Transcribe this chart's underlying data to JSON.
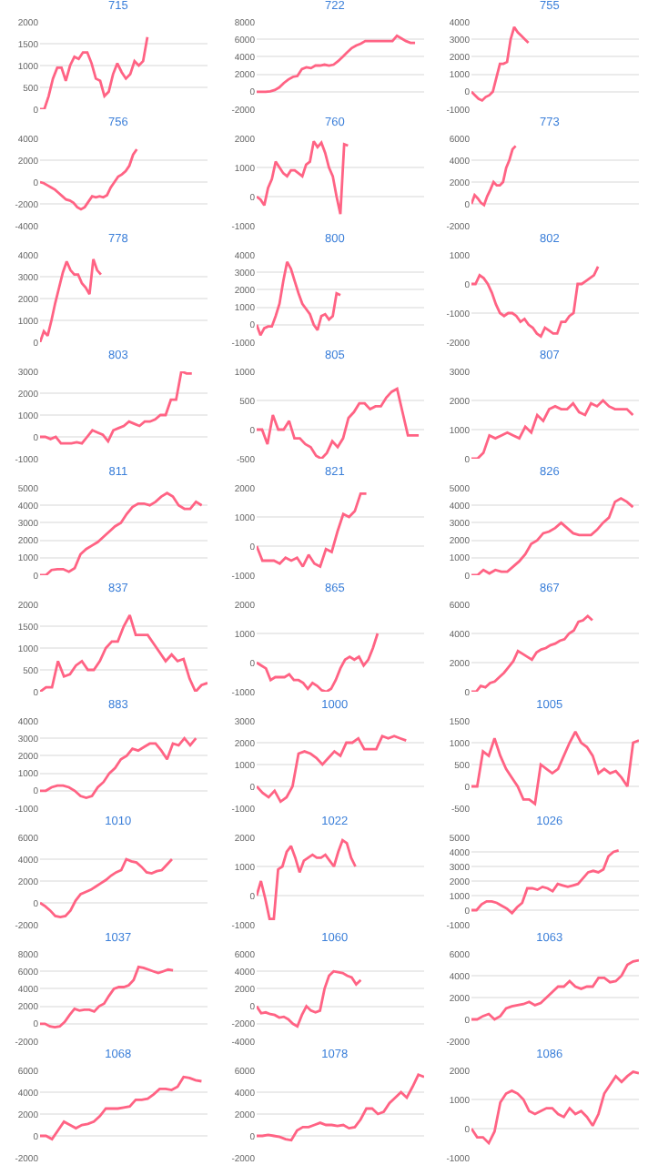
{
  "chart_data": [
    {
      "type": "line",
      "title": "715",
      "color": "#ff6384",
      "grid": "y",
      "tick_labels": "y",
      "ylim": [
        0,
        2000
      ],
      "yticks": [
        0,
        500,
        1000,
        1500,
        2000
      ],
      "categories": [
        null,
        null,
        null,
        null,
        null,
        null,
        null,
        null,
        null,
        null,
        null,
        null,
        null,
        null,
        null,
        null,
        null,
        null,
        null,
        null,
        null,
        null,
        null,
        null,
        null,
        null,
        null,
        null,
        null,
        null,
        null,
        null,
        null,
        null,
        null,
        null,
        null,
        null,
        null,
        null
      ],
      "values": [
        0,
        0,
        300,
        700,
        950,
        950,
        650,
        1000,
        1200,
        1150,
        1300,
        1300,
        1050,
        700,
        650,
        300,
        400,
        800,
        1050,
        850,
        700,
        800,
        1100,
        1000,
        1100,
        1650,
        null,
        null,
        null,
        null,
        null,
        null,
        null,
        null,
        null,
        null,
        null,
        null,
        null,
        null
      ]
    },
    {
      "type": "line",
      "title": "722",
      "color": "#ff6384",
      "grid": "y",
      "tick_labels": "y",
      "ylim": [
        -2000,
        8000
      ],
      "yticks": [
        -2000,
        0,
        2000,
        4000,
        6000,
        8000
      ],
      "categories": [
        null,
        null,
        null,
        null,
        null,
        null,
        null,
        null,
        null,
        null,
        null,
        null,
        null,
        null,
        null,
        null,
        null,
        null,
        null,
        null,
        null,
        null,
        null,
        null,
        null,
        null,
        null,
        null,
        null,
        null,
        null,
        null,
        null,
        null,
        null,
        null,
        null,
        null
      ],
      "values": [
        0,
        0,
        0,
        50,
        200,
        500,
        1000,
        1400,
        1700,
        1800,
        2600,
        2800,
        2700,
        3000,
        3000,
        3100,
        3000,
        3100,
        3500,
        4000,
        4500,
        5000,
        5300,
        5500,
        5800,
        5800,
        5800,
        5800,
        5800,
        5800,
        5800,
        6400,
        6100,
        5800,
        5600,
        5600,
        null,
        null
      ]
    },
    {
      "type": "line",
      "title": "755",
      "color": "#ff6384",
      "grid": "y",
      "tick_labels": "y",
      "ylim": [
        -1000,
        4000
      ],
      "yticks": [
        -1000,
        0,
        1000,
        2000,
        3000,
        4000
      ],
      "categories": [
        null,
        null,
        null,
        null,
        null,
        null,
        null,
        null,
        null,
        null,
        null,
        null,
        null,
        null,
        null,
        null,
        null,
        null,
        null,
        null,
        null,
        null,
        null,
        null,
        null,
        null,
        null,
        null,
        null,
        null,
        null,
        null,
        null,
        null,
        null,
        null,
        null,
        null,
        null,
        null,
        null,
        null,
        null,
        null,
        null,
        null,
        null,
        null
      ],
      "values": [
        0,
        -200,
        -400,
        -500,
        -300,
        -200,
        0,
        800,
        1600,
        1600,
        1700,
        3000,
        3700,
        3400,
        3200,
        3000,
        2800,
        null,
        null,
        null,
        null,
        null,
        null,
        null,
        null,
        null,
        null,
        null,
        null,
        null,
        null,
        null,
        null,
        null,
        null,
        null,
        null,
        null,
        null,
        null,
        null,
        null,
        null,
        null,
        null,
        null,
        null,
        null
      ]
    },
    {
      "type": "line",
      "title": "756",
      "color": "#ff6384",
      "grid": "y",
      "tick_labels": "y",
      "ylim": [
        -4000,
        4000
      ],
      "yticks": [
        -4000,
        -2000,
        0,
        2000,
        4000
      ],
      "categories": [
        null,
        null,
        null,
        null,
        null,
        null,
        null,
        null,
        null,
        null,
        null,
        null,
        null,
        null,
        null,
        null,
        null,
        null,
        null,
        null,
        null,
        null,
        null,
        null,
        null,
        null,
        null,
        null,
        null,
        null,
        null,
        null,
        null,
        null,
        null,
        null,
        null,
        null,
        null,
        null,
        null,
        null,
        null,
        null,
        null,
        null
      ],
      "values": [
        0,
        -100,
        -300,
        -500,
        -700,
        -1000,
        -1300,
        -1600,
        -1700,
        -1900,
        -2300,
        -2500,
        -2300,
        -1800,
        -1300,
        -1400,
        -1300,
        -1400,
        -1200,
        -500,
        0,
        500,
        700,
        1000,
        1500,
        2500,
        3000,
        null,
        null,
        null,
        null,
        null,
        null,
        null,
        null,
        null,
        null,
        null,
        null,
        null,
        null,
        null,
        null,
        null,
        null,
        null
      ]
    },
    {
      "type": "line",
      "title": "760",
      "color": "#ff6384",
      "grid": "y",
      "tick_labels": "y",
      "ylim": [
        -1000,
        2000
      ],
      "yticks": [
        -1000,
        0,
        1000,
        2000
      ],
      "categories": [
        null,
        null,
        null,
        null,
        null,
        null,
        null,
        null,
        null,
        null,
        null,
        null,
        null,
        null,
        null,
        null,
        null,
        null,
        null,
        null,
        null,
        null,
        null,
        null,
        null,
        null,
        null,
        null,
        null,
        null,
        null,
        null,
        null,
        null,
        null,
        null,
        null,
        null,
        null,
        null,
        null,
        null,
        null,
        null,
        null
      ],
      "values": [
        0,
        -100,
        -300,
        300,
        600,
        1200,
        1000,
        800,
        700,
        900,
        900,
        800,
        700,
        1100,
        1200,
        1900,
        1700,
        1850,
        1500,
        1000,
        700,
        0,
        -600,
        1800,
        1750,
        null,
        null,
        null,
        null,
        null,
        null,
        null,
        null,
        null,
        null,
        null,
        null,
        null,
        null,
        null,
        null,
        null,
        null,
        null,
        null
      ]
    },
    {
      "type": "line",
      "title": "773",
      "color": "#ff6384",
      "grid": "y",
      "tick_labels": "y",
      "ylim": [
        -2000,
        6000
      ],
      "yticks": [
        -2000,
        0,
        2000,
        4000,
        6000
      ],
      "categories": [
        null,
        null,
        null,
        null,
        null,
        null,
        null,
        null,
        null,
        null,
        null,
        null,
        null,
        null,
        null,
        null,
        null,
        null,
        null,
        null,
        null,
        null,
        null,
        null,
        null,
        null,
        null,
        null,
        null,
        null,
        null,
        null,
        null,
        null,
        null,
        null,
        null,
        null,
        null,
        null,
        null,
        null,
        null,
        null,
        null,
        null,
        null,
        null,
        null,
        null,
        null,
        null,
        null,
        null
      ],
      "values": [
        0,
        800,
        500,
        100,
        -100,
        700,
        1300,
        2000,
        1700,
        1700,
        2000,
        3300,
        4000,
        5000,
        5300,
        null,
        null,
        null,
        null,
        null,
        null,
        null,
        null,
        null,
        null,
        null,
        null,
        null,
        null,
        null,
        null,
        null,
        null,
        null,
        null,
        null,
        null,
        null,
        null,
        null,
        null,
        null,
        null,
        null,
        null,
        null,
        null,
        null,
        null,
        null,
        null,
        null,
        null,
        null
      ]
    },
    {
      "type": "line",
      "title": "778",
      "color": "#ff6384",
      "grid": "y",
      "tick_labels": "y",
      "ylim": [
        0,
        4000
      ],
      "yticks": [
        0,
        1000,
        2000,
        3000,
        4000
      ],
      "categories": [
        null,
        null,
        null,
        null,
        null,
        null,
        null,
        null,
        null,
        null,
        null,
        null,
        null,
        null,
        null,
        null,
        null,
        null,
        null,
        null,
        null,
        null,
        null,
        null,
        null,
        null,
        null,
        null,
        null,
        null,
        null,
        null,
        null,
        null,
        null,
        null,
        null,
        null,
        null,
        null,
        null,
        null,
        null,
        null,
        null
      ],
      "values": [
        0,
        500,
        300,
        1000,
        1800,
        2500,
        3200,
        3700,
        3300,
        3100,
        3100,
        2700,
        2500,
        2200,
        3800,
        3300,
        3100,
        null,
        null,
        null,
        null,
        null,
        null,
        null,
        null,
        null,
        null,
        null,
        null,
        null,
        null,
        null,
        null,
        null,
        null,
        null,
        null,
        null,
        null,
        null,
        null,
        null,
        null,
        null,
        null
      ]
    },
    {
      "type": "line",
      "title": "800",
      "color": "#ff6384",
      "grid": "y",
      "tick_labels": "y",
      "ylim": [
        -1000,
        4000
      ],
      "yticks": [
        -1000,
        0,
        1000,
        2000,
        3000,
        4000
      ],
      "categories": [
        null,
        null,
        null,
        null,
        null,
        null,
        null,
        null,
        null,
        null,
        null,
        null,
        null,
        null,
        null,
        null,
        null,
        null,
        null,
        null,
        null,
        null,
        null,
        null,
        null,
        null,
        null,
        null,
        null,
        null,
        null,
        null,
        null,
        null,
        null,
        null,
        null,
        null,
        null,
        null,
        null,
        null,
        null,
        null,
        null
      ],
      "values": [
        0,
        -600,
        -200,
        -100,
        -100,
        500,
        1200,
        2500,
        3600,
        3200,
        2500,
        1800,
        1200,
        900,
        600,
        0,
        -300,
        500,
        600,
        300,
        500,
        1800,
        1700,
        null,
        null,
        null,
        null,
        null,
        null,
        null,
        null,
        null,
        null,
        null,
        null,
        null,
        null,
        null,
        null,
        null,
        null,
        null,
        null,
        null,
        null
      ]
    },
    {
      "type": "line",
      "title": "802",
      "color": "#ff6384",
      "grid": "y",
      "tick_labels": "y",
      "ylim": [
        -2000,
        1000
      ],
      "yticks": [
        -2000,
        -1000,
        0,
        1000
      ],
      "categories": [
        null,
        null,
        null,
        null,
        null,
        null,
        null,
        null,
        null,
        null,
        null,
        null,
        null,
        null,
        null,
        null,
        null,
        null,
        null,
        null,
        null,
        null,
        null,
        null,
        null,
        null,
        null,
        null,
        null,
        null,
        null,
        null,
        null,
        null,
        null,
        null,
        null,
        null,
        null,
        null,
        null,
        null
      ],
      "values": [
        0,
        0,
        300,
        200,
        0,
        -300,
        -700,
        -1000,
        -1100,
        -1000,
        -1000,
        -1100,
        -1300,
        -1200,
        -1400,
        -1500,
        -1700,
        -1800,
        -1500,
        -1600,
        -1700,
        -1700,
        -1300,
        -1300,
        -1100,
        -1000,
        0,
        0,
        100,
        200,
        300,
        600,
        null,
        null,
        null,
        null,
        null,
        null,
        null,
        null,
        null,
        null
      ]
    },
    {
      "type": "line",
      "title": "803",
      "color": "#ff6384",
      "grid": "y",
      "tick_labels": "y",
      "ylim": [
        -1000,
        3000
      ],
      "yticks": [
        -1000,
        0,
        1000,
        2000,
        3000
      ],
      "categories": [
        null,
        null,
        null,
        null,
        null,
        null,
        null,
        null,
        null,
        null,
        null,
        null,
        null,
        null,
        null,
        null,
        null,
        null,
        null,
        null,
        null,
        null,
        null,
        null,
        null,
        null,
        null,
        null,
        null,
        null,
        null,
        null,
        null
      ],
      "values": [
        0,
        0,
        -100,
        0,
        -300,
        -300,
        -300,
        -250,
        -300,
        0,
        300,
        200,
        100,
        -200,
        300,
        400,
        500,
        700,
        600,
        500,
        700,
        700,
        800,
        1000,
        1000,
        1700,
        1700,
        3000,
        2900,
        2900,
        null,
        null,
        null
      ]
    },
    {
      "type": "line",
      "title": "805",
      "color": "#ff6384",
      "grid": "y",
      "tick_labels": "y",
      "ylim": [
        -500,
        1000
      ],
      "yticks": [
        -500,
        0,
        500,
        1000
      ],
      "categories": [
        null,
        null,
        null,
        null,
        null,
        null,
        null,
        null,
        null,
        null,
        null,
        null,
        null,
        null,
        null,
        null,
        null,
        null,
        null,
        null,
        null,
        null,
        null,
        null,
        null,
        null,
        null,
        null,
        null,
        null,
        null,
        null
      ],
      "values": [
        0,
        0,
        -250,
        250,
        0,
        0,
        150,
        -150,
        -150,
        -250,
        -300,
        -450,
        -500,
        -400,
        -200,
        -300,
        -150,
        200,
        300,
        450,
        450,
        350,
        400,
        400,
        550,
        650,
        700,
        300,
        -100,
        -100,
        -100,
        null
      ]
    },
    {
      "type": "line",
      "title": "807",
      "color": "#ff6384",
      "grid": "y",
      "tick_labels": "y",
      "ylim": [
        0,
        3000
      ],
      "yticks": [
        0,
        1000,
        2000,
        3000
      ],
      "categories": [
        null,
        null,
        null,
        null,
        null,
        null,
        null,
        null,
        null,
        null,
        null,
        null,
        null,
        null,
        null,
        null,
        null,
        null,
        null,
        null,
        null,
        null,
        null,
        null,
        null,
        null,
        null,
        null,
        null
      ],
      "values": [
        0,
        0,
        200,
        800,
        700,
        800,
        900,
        800,
        700,
        1100,
        900,
        1500,
        1300,
        1700,
        1800,
        1700,
        1700,
        1900,
        1600,
        1500,
        1900,
        1800,
        2000,
        1800,
        1700,
        1700,
        1700,
        1500,
        null
      ]
    },
    {
      "type": "line",
      "title": "811",
      "color": "#ff6384",
      "grid": "y",
      "tick_labels": "y",
      "ylim": [
        0,
        5000
      ],
      "yticks": [
        0,
        1000,
        2000,
        3000,
        4000,
        5000
      ],
      "categories": [
        null,
        null,
        null,
        null,
        null,
        null,
        null,
        null,
        null,
        null,
        null,
        null,
        null,
        null,
        null,
        null,
        null,
        null,
        null,
        null,
        null,
        null,
        null,
        null,
        null,
        null,
        null,
        null,
        null,
        null
      ],
      "values": [
        0,
        0,
        300,
        350,
        350,
        200,
        400,
        1200,
        1500,
        1700,
        1900,
        2200,
        2500,
        2800,
        3000,
        3500,
        3900,
        4100,
        4100,
        4000,
        4200,
        4500,
        4700,
        4500,
        4000,
        3800,
        3800,
        4200,
        4000,
        null
      ]
    },
    {
      "type": "line",
      "title": "821",
      "color": "#ff6384",
      "grid": "y",
      "tick_labels": "y",
      "ylim": [
        -1000,
        2000
      ],
      "yticks": [
        -1000,
        0,
        1000,
        2000
      ],
      "categories": [
        null,
        null,
        null,
        null,
        null,
        null,
        null,
        null,
        null,
        null,
        null,
        null,
        null,
        null,
        null,
        null,
        null,
        null,
        null,
        null,
        null,
        null,
        null,
        null,
        null,
        null,
        null,
        null,
        null,
        null
      ],
      "values": [
        0,
        -500,
        -500,
        -500,
        -600,
        -400,
        -500,
        -400,
        -700,
        -300,
        -600,
        -700,
        -100,
        -200,
        500,
        1100,
        1000,
        1200,
        1800,
        1800,
        null,
        null,
        null,
        null,
        null,
        null,
        null,
        null,
        null,
        null
      ]
    },
    {
      "type": "line",
      "title": "826",
      "color": "#ff6384",
      "grid": "y",
      "tick_labels": "y",
      "ylim": [
        0,
        5000
      ],
      "yticks": [
        0,
        1000,
        2000,
        3000,
        4000,
        5000
      ],
      "categories": [
        null,
        null,
        null,
        null,
        null,
        null,
        null,
        null,
        null,
        null,
        null,
        null,
        null,
        null,
        null,
        null,
        null,
        null,
        null,
        null,
        null,
        null,
        null,
        null,
        null,
        null,
        null,
        null,
        null
      ],
      "values": [
        0,
        0,
        300,
        100,
        300,
        200,
        200,
        500,
        800,
        1200,
        1800,
        2000,
        2400,
        2500,
        2700,
        3000,
        2700,
        2400,
        2300,
        2300,
        2300,
        2600,
        3000,
        3300,
        4200,
        4400,
        4200,
        3900,
        null
      ]
    },
    {
      "type": "line",
      "title": "837",
      "color": "#ff6384",
      "grid": "y",
      "tick_labels": "y",
      "ylim": [
        0,
        2000
      ],
      "yticks": [
        0,
        500,
        1000,
        1500,
        2000
      ],
      "categories": [
        null,
        null,
        null,
        null,
        null,
        null,
        null,
        null,
        null,
        null,
        null,
        null,
        null,
        null,
        null,
        null,
        null,
        null,
        null,
        null,
        null,
        null,
        null,
        null,
        null,
        null,
        null,
        null,
        null
      ],
      "values": [
        0,
        100,
        100,
        700,
        350,
        400,
        600,
        700,
        500,
        500,
        700,
        1000,
        1150,
        1150,
        1500,
        1750,
        1300,
        1300,
        1300,
        1100,
        900,
        700,
        850,
        700,
        750,
        300,
        0,
        150,
        200
      ]
    },
    {
      "type": "line",
      "title": "865",
      "color": "#ff6384",
      "grid": "y",
      "tick_labels": "y",
      "ylim": [
        -1000,
        2000
      ],
      "yticks": [
        -1000,
        0,
        1000,
        2000
      ],
      "categories": [
        null,
        null,
        null,
        null,
        null,
        null,
        null,
        null,
        null,
        null,
        null,
        null,
        null,
        null,
        null,
        null,
        null,
        null,
        null,
        null,
        null,
        null,
        null,
        null,
        null,
        null,
        null,
        null,
        null,
        null,
        null,
        null,
        null,
        null,
        null,
        null,
        null
      ],
      "values": [
        0,
        -100,
        -200,
        -600,
        -500,
        -500,
        -500,
        -400,
        -600,
        -600,
        -700,
        -900,
        -700,
        -800,
        -950,
        -1000,
        -900,
        -600,
        -200,
        100,
        200,
        100,
        200,
        -100,
        100,
        500,
        1000,
        null,
        null,
        null,
        null,
        null,
        null,
        null,
        null,
        null,
        null
      ]
    },
    {
      "type": "line",
      "title": "867",
      "color": "#ff6384",
      "grid": "y",
      "tick_labels": "y",
      "ylim": [
        0,
        6000
      ],
      "yticks": [
        0,
        2000,
        4000,
        6000
      ],
      "categories": [
        null,
        null,
        null,
        null,
        null,
        null,
        null,
        null,
        null,
        null,
        null,
        null,
        null,
        null,
        null,
        null,
        null,
        null,
        null,
        null,
        null,
        null,
        null,
        null,
        null,
        null,
        null,
        null,
        null,
        null,
        null,
        null,
        null,
        null,
        null,
        null,
        null
      ],
      "values": [
        0,
        0,
        400,
        300,
        600,
        700,
        1000,
        1300,
        1700,
        2100,
        2800,
        2600,
        2400,
        2200,
        2700,
        2900,
        3000,
        3200,
        3300,
        3500,
        3600,
        4000,
        4200,
        4800,
        4900,
        5200,
        4900,
        null,
        null,
        null,
        null,
        null,
        null,
        null,
        null,
        null,
        null
      ]
    },
    {
      "type": "line",
      "title": "883",
      "color": "#ff6384",
      "grid": "y",
      "tick_labels": "y",
      "ylim": [
        -1000,
        4000
      ],
      "yticks": [
        -1000,
        0,
        1000,
        2000,
        3000,
        4000
      ],
      "categories": [
        null,
        null,
        null,
        null,
        null,
        null,
        null,
        null,
        null,
        null,
        null,
        null,
        null,
        null,
        null,
        null,
        null,
        null,
        null,
        null,
        null,
        null,
        null,
        null,
        null,
        null,
        null,
        null,
        null,
        null
      ],
      "values": [
        0,
        0,
        200,
        300,
        300,
        200,
        0,
        -300,
        -400,
        -300,
        200,
        500,
        1000,
        1300,
        1800,
        2000,
        2400,
        2300,
        2500,
        2700,
        2700,
        2300,
        1800,
        2700,
        2600,
        3000,
        2600,
        3000,
        null,
        null
      ]
    },
    {
      "type": "line",
      "title": "1000",
      "color": "#ff6384",
      "grid": "y",
      "tick_labels": "y",
      "ylim": [
        -1000,
        3000
      ],
      "yticks": [
        -1000,
        0,
        1000,
        2000,
        3000
      ],
      "categories": [
        null,
        null,
        null,
        null,
        null,
        null,
        null,
        null,
        null,
        null,
        null,
        null,
        null,
        null,
        null,
        null,
        null,
        null,
        null,
        null,
        null,
        null,
        null,
        null,
        null,
        null,
        null,
        null,
        null
      ],
      "values": [
        0,
        -300,
        -500,
        -200,
        -700,
        -500,
        0,
        1500,
        1600,
        1500,
        1300,
        1000,
        1300,
        1600,
        1400,
        2000,
        2000,
        2200,
        1700,
        1700,
        1700,
        2300,
        2200,
        2300,
        2200,
        2100,
        null,
        null,
        null
      ]
    },
    {
      "type": "line",
      "title": "1005",
      "color": "#ff6384",
      "grid": "y",
      "tick_labels": "y",
      "ylim": [
        -500,
        1500
      ],
      "yticks": [
        -500,
        0,
        500,
        1000,
        1500
      ],
      "categories": [
        null,
        null,
        null,
        null,
        null,
        null,
        null,
        null,
        null,
        null,
        null,
        null,
        null,
        null,
        null,
        null,
        null,
        null,
        null,
        null,
        null,
        null,
        null,
        null,
        null,
        null,
        null,
        null,
        null,
        null
      ],
      "values": [
        0,
        0,
        800,
        700,
        1100,
        700,
        400,
        200,
        0,
        -300,
        -300,
        -400,
        500,
        400,
        300,
        400,
        700,
        1000,
        1250,
        1000,
        900,
        700,
        300,
        400,
        300,
        350,
        200,
        0,
        1000,
        1050
      ]
    },
    {
      "type": "line",
      "title": "1010",
      "color": "#ff6384",
      "grid": "y",
      "tick_labels": "y",
      "ylim": [
        -2000,
        6000
      ],
      "yticks": [
        -2000,
        0,
        2000,
        4000,
        6000
      ],
      "categories": [
        null,
        null,
        null,
        null,
        null,
        null,
        null,
        null,
        null,
        null,
        null,
        null,
        null,
        null,
        null,
        null,
        null,
        null,
        null,
        null,
        null,
        null,
        null,
        null,
        null,
        null,
        null,
        null,
        null,
        null,
        null,
        null,
        null,
        null
      ],
      "values": [
        0,
        -300,
        -700,
        -1200,
        -1300,
        -1200,
        -700,
        200,
        800,
        1000,
        1200,
        1500,
        1800,
        2100,
        2500,
        2800,
        3000,
        4000,
        3800,
        3700,
        3300,
        2800,
        2700,
        2900,
        3000,
        3500,
        4000,
        null,
        null,
        null,
        null,
        null,
        null,
        null
      ]
    },
    {
      "type": "line",
      "title": "1022",
      "color": "#ff6384",
      "grid": "y",
      "tick_labels": "y",
      "ylim": [
        -1000,
        2000
      ],
      "yticks": [
        -1000,
        0,
        1000,
        2000
      ],
      "categories": [
        null,
        null,
        null,
        null,
        null,
        null,
        null,
        null,
        null,
        null,
        null,
        null,
        null,
        null,
        null,
        null,
        null,
        null,
        null,
        null,
        null,
        null,
        null,
        null,
        null,
        null,
        null,
        null,
        null,
        null,
        null,
        null,
        null,
        null,
        null,
        null,
        null,
        null,
        null,
        null
      ],
      "values": [
        0,
        500,
        -100,
        -800,
        -800,
        900,
        1000,
        1500,
        1700,
        1300,
        800,
        1200,
        1300,
        1400,
        1300,
        1300,
        1400,
        1200,
        1000,
        1500,
        1900,
        1800,
        1300,
        1000,
        null,
        null,
        null,
        null,
        null,
        null,
        null,
        null,
        null,
        null,
        null,
        null,
        null,
        null,
        null,
        null
      ]
    },
    {
      "type": "line",
      "title": "1026",
      "color": "#ff6384",
      "grid": "y",
      "tick_labels": "y",
      "ylim": [
        -1000,
        5000
      ],
      "yticks": [
        -1000,
        0,
        1000,
        2000,
        3000,
        4000,
        5000
      ],
      "categories": [
        null,
        null,
        null,
        null,
        null,
        null,
        null,
        null,
        null,
        null,
        null,
        null,
        null,
        null,
        null,
        null,
        null,
        null,
        null,
        null,
        null,
        null,
        null,
        null,
        null,
        null,
        null,
        null,
        null,
        null,
        null,
        null,
        null,
        null
      ],
      "values": [
        0,
        0,
        400,
        600,
        600,
        500,
        300,
        100,
        -200,
        200,
        500,
        1500,
        1500,
        1400,
        1600,
        1500,
        1300,
        1800,
        1700,
        1600,
        1700,
        1800,
        2200,
        2600,
        2700,
        2600,
        2800,
        3700,
        4000,
        4100,
        null,
        null,
        null,
        null
      ]
    },
    {
      "type": "line",
      "title": "1037",
      "color": "#ff6384",
      "grid": "y",
      "tick_labels": "y",
      "ylim": [
        -2000,
        8000
      ],
      "yticks": [
        -2000,
        0,
        2000,
        4000,
        6000,
        8000
      ],
      "categories": [
        null,
        null,
        null,
        null,
        null,
        null,
        null,
        null,
        null,
        null,
        null,
        null,
        null,
        null,
        null,
        null,
        null,
        null,
        null,
        null,
        null,
        null,
        null,
        null,
        null,
        null,
        null,
        null,
        null,
        null,
        null,
        null,
        null,
        null,
        null
      ],
      "values": [
        0,
        0,
        -300,
        -400,
        -300,
        200,
        1000,
        1700,
        1500,
        1600,
        1600,
        1400,
        2000,
        2300,
        3200,
        4000,
        4200,
        4200,
        4400,
        5000,
        6500,
        6400,
        6200,
        6000,
        5800,
        6000,
        6200,
        6100,
        null,
        null,
        null,
        null,
        null,
        null,
        null
      ]
    },
    {
      "type": "line",
      "title": "1060",
      "color": "#ff6384",
      "grid": "y",
      "tick_labels": "y",
      "ylim": [
        -4000,
        6000
      ],
      "yticks": [
        -4000,
        -2000,
        0,
        2000,
        4000,
        6000
      ],
      "categories": [
        null,
        null,
        null,
        null,
        null,
        null,
        null,
        null,
        null,
        null,
        null,
        null,
        null,
        null,
        null,
        null,
        null,
        null,
        null,
        null,
        null,
        null,
        null,
        null,
        null,
        null,
        null,
        null,
        null,
        null,
        null,
        null,
        null,
        null,
        null,
        null,
        null,
        null
      ],
      "values": [
        0,
        -800,
        -700,
        -900,
        -1000,
        -1300,
        -1200,
        -1500,
        -2000,
        -2300,
        -1000,
        0,
        -500,
        -700,
        -500,
        2000,
        3500,
        4000,
        3900,
        3800,
        3500,
        3300,
        2500,
        3000,
        null,
        null,
        null,
        null,
        null,
        null,
        null,
        null,
        null,
        null,
        null,
        null,
        null,
        null
      ]
    },
    {
      "type": "line",
      "title": "1063",
      "color": "#ff6384",
      "grid": "y",
      "tick_labels": "y",
      "ylim": [
        -2000,
        6000
      ],
      "yticks": [
        -2000,
        0,
        2000,
        4000,
        6000
      ],
      "categories": [
        null,
        null,
        null,
        null,
        null,
        null,
        null,
        null,
        null,
        null,
        null,
        null,
        null,
        null,
        null,
        null,
        null,
        null,
        null,
        null,
        null,
        null,
        null,
        null,
        null,
        null,
        null,
        null,
        null,
        null
      ],
      "values": [
        0,
        0,
        300,
        500,
        0,
        300,
        1000,
        1200,
        1300,
        1400,
        1600,
        1300,
        1500,
        2000,
        2500,
        3000,
        3000,
        3500,
        3000,
        2800,
        3000,
        3000,
        3800,
        3800,
        3400,
        3500,
        4000,
        5000,
        5300,
        5400
      ]
    },
    {
      "type": "line",
      "title": "1068",
      "color": "#ff6384",
      "grid": "y",
      "tick_labels": "y",
      "ylim": [
        -2000,
        6000
      ],
      "yticks": [
        -2000,
        0,
        2000,
        4000,
        6000
      ],
      "categories": [
        null,
        null,
        null,
        null,
        null,
        null,
        null,
        null,
        null,
        null,
        null,
        null,
        null,
        null,
        null,
        null,
        null,
        null,
        null,
        null,
        null,
        null,
        null,
        null,
        null,
        null,
        null,
        null,
        null
      ],
      "values": [
        0,
        0,
        -300,
        500,
        1300,
        1000,
        700,
        1000,
        1100,
        1300,
        1800,
        2500,
        2500,
        2500,
        2600,
        2700,
        3300,
        3300,
        3400,
        3800,
        4300,
        4300,
        4200,
        4500,
        5400,
        5300,
        5100,
        5000,
        null
      ]
    },
    {
      "type": "line",
      "title": "1078",
      "color": "#ff6384",
      "grid": "y",
      "tick_labels": "y",
      "ylim": [
        -2000,
        6000
      ],
      "yticks": [
        -2000,
        0,
        2000,
        4000,
        6000
      ],
      "categories": [
        null,
        null,
        null,
        null,
        null,
        null,
        null,
        null,
        null,
        null,
        null,
        null,
        null,
        null,
        null,
        null,
        null,
        null,
        null,
        null,
        null,
        null,
        null,
        null,
        null,
        null,
        null,
        null,
        null,
        null
      ],
      "values": [
        0,
        0,
        100,
        0,
        -100,
        -300,
        -400,
        500,
        800,
        800,
        1000,
        1200,
        1000,
        1000,
        900,
        1000,
        700,
        800,
        1500,
        2500,
        2500,
        2000,
        2200,
        3000,
        3500,
        4000,
        3500,
        4500,
        5600,
        5400
      ]
    },
    {
      "type": "line",
      "title": "1086",
      "color": "#ff6384",
      "grid": "y",
      "tick_labels": "y",
      "ylim": [
        -1000,
        2000
      ],
      "yticks": [
        -1000,
        0,
        1000,
        2000
      ],
      "categories": [
        null,
        null,
        null,
        null,
        null,
        null,
        null,
        null,
        null,
        null,
        null,
        null,
        null,
        null,
        null,
        null,
        null,
        null,
        null,
        null,
        null,
        null,
        null,
        null,
        null,
        null,
        null,
        null,
        null,
        null
      ],
      "values": [
        0,
        -300,
        -300,
        -500,
        -100,
        900,
        1200,
        1300,
        1200,
        1000,
        600,
        500,
        600,
        700,
        700,
        500,
        400,
        700,
        500,
        600,
        400,
        100,
        500,
        1200,
        1500,
        1800,
        1600,
        1800,
        1950,
        1900
      ]
    }
  ]
}
